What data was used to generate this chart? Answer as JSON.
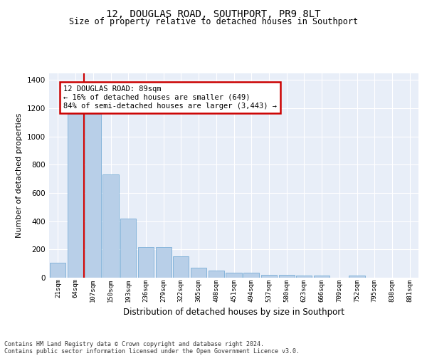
{
  "title1": "12, DOUGLAS ROAD, SOUTHPORT, PR9 8LT",
  "title2": "Size of property relative to detached houses in Southport",
  "xlabel": "Distribution of detached houses by size in Southport",
  "ylabel": "Number of detached properties",
  "categories": [
    "21sqm",
    "64sqm",
    "107sqm",
    "150sqm",
    "193sqm",
    "236sqm",
    "279sqm",
    "322sqm",
    "365sqm",
    "408sqm",
    "451sqm",
    "494sqm",
    "537sqm",
    "580sqm",
    "623sqm",
    "666sqm",
    "709sqm",
    "752sqm",
    "795sqm",
    "838sqm",
    "881sqm"
  ],
  "values": [
    107,
    1160,
    1158,
    730,
    418,
    218,
    218,
    152,
    72,
    50,
    33,
    33,
    20,
    20,
    15,
    15,
    0,
    15,
    0,
    0,
    0
  ],
  "bar_color": "#b8cfe8",
  "bar_edge_color": "#7aaed6",
  "annotation_text": "12 DOUGLAS ROAD: 89sqm\n← 16% of detached houses are smaller (649)\n84% of semi-detached houses are larger (3,443) →",
  "annotation_box_color": "#ffffff",
  "annotation_box_edge": "#cc0000",
  "vline_color": "#cc0000",
  "footer1": "Contains HM Land Registry data © Crown copyright and database right 2024.",
  "footer2": "Contains public sector information licensed under the Open Government Licence v3.0.",
  "ylim": [
    0,
    1450
  ],
  "bg_color": "#e8eef8",
  "grid_color": "#ffffff"
}
